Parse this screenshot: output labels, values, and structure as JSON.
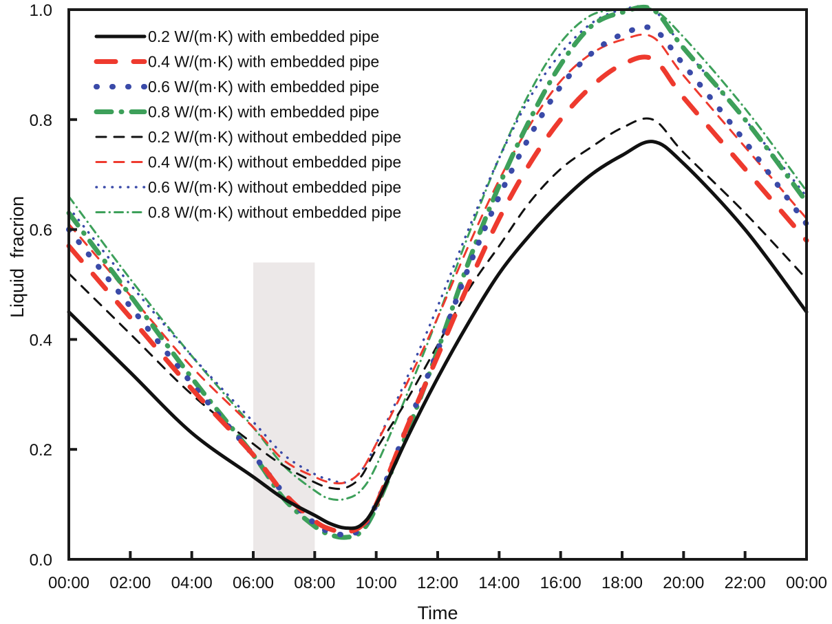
{
  "chart_data": {
    "type": "line",
    "title": "",
    "xlabel": "Time",
    "ylabel": "Liquid  fracrion",
    "xlim": [
      0,
      24
    ],
    "ylim": [
      0,
      1.0
    ],
    "x_ticks": [
      0,
      2,
      4,
      6,
      8,
      10,
      12,
      14,
      16,
      18,
      20,
      22,
      24
    ],
    "x_tick_labels": [
      "00:00",
      "02:00",
      "04:00",
      "06:00",
      "08:00",
      "10:00",
      "12:00",
      "14:00",
      "16:00",
      "18:00",
      "20:00",
      "22:00",
      "00:00"
    ],
    "y_ticks": [
      0.0,
      0.2,
      0.4,
      0.6,
      0.8,
      1.0
    ],
    "y_tick_labels": [
      "0.0",
      "0.2",
      "0.4",
      "0.6",
      "0.8",
      "1.0"
    ],
    "grid": false,
    "legend_position": "top-left",
    "shaded_region": {
      "x_start": 6,
      "x_end": 8,
      "y_top": 0.54,
      "color": "#ece8e8"
    },
    "x": [
      0,
      2,
      4,
      6,
      7,
      8,
      8.5,
      9,
      9.5,
      10,
      11,
      12,
      13,
      14,
      15,
      16,
      17,
      18,
      19,
      20,
      22,
      24
    ],
    "series": [
      {
        "name": "0.2 W/(m·K) with embedded pipe",
        "color": "#111111",
        "style": "solid-thick",
        "values": [
          0.45,
          0.34,
          0.23,
          0.15,
          0.11,
          0.08,
          0.065,
          0.057,
          0.062,
          0.1,
          0.22,
          0.33,
          0.43,
          0.52,
          0.59,
          0.65,
          0.7,
          0.735,
          0.76,
          0.72,
          0.6,
          0.45
        ]
      },
      {
        "name": "0.4 W/(m·K) with embedded pipe",
        "color": "#ee3a2e",
        "style": "long-dash-thick",
        "values": [
          0.57,
          0.44,
          0.31,
          0.19,
          0.12,
          0.07,
          0.055,
          0.05,
          0.06,
          0.1,
          0.24,
          0.37,
          0.5,
          0.62,
          0.72,
          0.8,
          0.86,
          0.9,
          0.91,
          0.84,
          0.71,
          0.58
        ]
      },
      {
        "name": "0.6 W/(m·K) with embedded pipe",
        "color": "#3a4aa8",
        "style": "dots-thick",
        "values": [
          0.6,
          0.46,
          0.32,
          0.19,
          0.12,
          0.065,
          0.05,
          0.045,
          0.055,
          0.1,
          0.24,
          0.38,
          0.53,
          0.66,
          0.77,
          0.86,
          0.92,
          0.955,
          0.965,
          0.9,
          0.76,
          0.61
        ]
      },
      {
        "name": "0.8 W/(m·K) with embedded pipe",
        "color": "#3da05a",
        "style": "dash-dot-thick",
        "values": [
          0.63,
          0.48,
          0.33,
          0.19,
          0.11,
          0.06,
          0.045,
          0.04,
          0.05,
          0.095,
          0.23,
          0.38,
          0.54,
          0.68,
          0.8,
          0.9,
          0.97,
          0.995,
          1.0,
          0.93,
          0.8,
          0.65
        ]
      },
      {
        "name": "0.2 W/(m·K) without embedded pipe",
        "color": "#111111",
        "style": "dash",
        "values": [
          0.52,
          0.41,
          0.3,
          0.21,
          0.17,
          0.14,
          0.13,
          0.13,
          0.15,
          0.2,
          0.29,
          0.39,
          0.49,
          0.57,
          0.65,
          0.71,
          0.75,
          0.785,
          0.8,
          0.74,
          0.63,
          0.51
        ]
      },
      {
        "name": "0.4 W/(m·K) without embedded pipe",
        "color": "#ee3a2e",
        "style": "dash",
        "values": [
          0.61,
          0.48,
          0.35,
          0.24,
          0.18,
          0.15,
          0.14,
          0.14,
          0.16,
          0.21,
          0.32,
          0.44,
          0.57,
          0.69,
          0.79,
          0.87,
          0.92,
          0.945,
          0.95,
          0.88,
          0.75,
          0.62
        ]
      },
      {
        "name": "0.6 W/(m·K) without embedded pipe",
        "color": "#3a4aa8",
        "style": "dot",
        "values": [
          0.64,
          0.5,
          0.37,
          0.25,
          0.19,
          0.155,
          0.145,
          0.14,
          0.16,
          0.21,
          0.33,
          0.46,
          0.6,
          0.73,
          0.84,
          0.92,
          0.975,
          1.0,
          1.0,
          0.93,
          0.8,
          0.66
        ]
      },
      {
        "name": "0.8 W/(m·K) without embedded pipe",
        "color": "#3da05a",
        "style": "dash-dot",
        "values": [
          0.66,
          0.51,
          0.37,
          0.24,
          0.17,
          0.125,
          0.11,
          0.11,
          0.125,
          0.17,
          0.3,
          0.44,
          0.59,
          0.73,
          0.85,
          0.94,
          0.99,
          1.0,
          1.0,
          0.95,
          0.82,
          0.67
        ]
      }
    ]
  }
}
